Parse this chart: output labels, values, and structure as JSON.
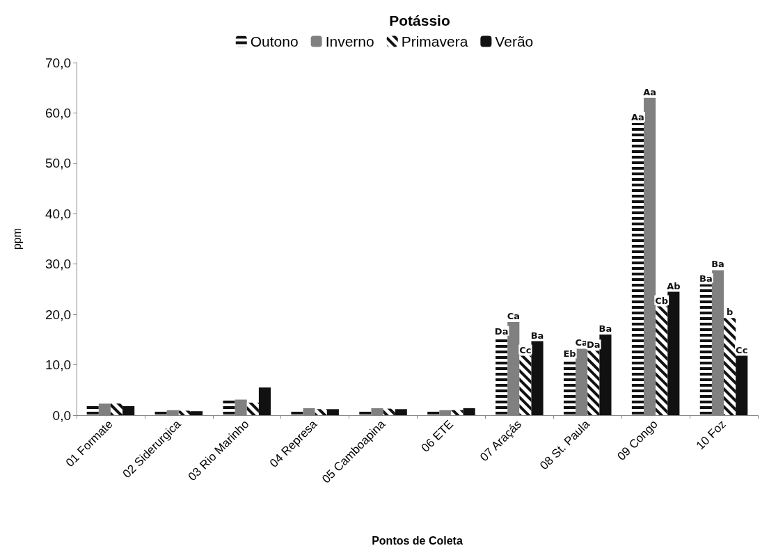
{
  "chart_data": {
    "type": "bar",
    "title": "Potássio",
    "xlabel": "Pontos de Coleta",
    "ylabel": "ppm",
    "categories": [
      "01 Formate",
      "02 Siderurgica",
      "03 Rio Marinho",
      "04 Represa",
      "05 Camboapina",
      "06 ETE",
      "07 Araçás",
      "08 St. Paula",
      "09 Congo",
      "10 Foz"
    ],
    "series": [
      {
        "name": "Outono",
        "color": "#111111",
        "values": [
          1.8,
          0.8,
          2.9,
          0.8,
          0.8,
          0.8,
          15.5,
          11.0,
          58.0,
          26.0
        ],
        "value_labels": [
          null,
          null,
          null,
          null,
          null,
          null,
          "Da",
          "Eb",
          "Aa",
          "Ba"
        ]
      },
      {
        "name": "Inverno",
        "color": "#808080",
        "values": [
          2.3,
          1.0,
          3.1,
          1.4,
          1.4,
          1.0,
          18.5,
          13.2,
          63.0,
          28.8
        ],
        "value_labels": [
          null,
          null,
          null,
          null,
          null,
          null,
          "Ca",
          "Ca",
          "Aa",
          "Ba"
        ]
      },
      {
        "name": "Primavera",
        "color": "#111111",
        "values": [
          2.3,
          0.9,
          2.5,
          1.2,
          1.3,
          1.0,
          11.8,
          12.8,
          21.6,
          19.3
        ],
        "value_labels": [
          null,
          null,
          null,
          null,
          null,
          null,
          "Cc",
          "Da",
          "Cb",
          "b"
        ]
      },
      {
        "name": "Verão",
        "color": "#111111",
        "values": [
          1.8,
          0.8,
          5.5,
          1.2,
          1.2,
          1.4,
          14.7,
          16.0,
          24.5,
          11.8
        ],
        "value_labels": [
          null,
          null,
          null,
          null,
          null,
          null,
          "Ba",
          "Ba",
          "Ab",
          "Cc"
        ]
      }
    ],
    "ylim": [
      0,
      70
    ],
    "yticks": [
      {
        "value": 0,
        "label": "0,0"
      },
      {
        "value": 10,
        "label": "10,0"
      },
      {
        "value": 20,
        "label": "20,0"
      },
      {
        "value": 30,
        "label": "30,0"
      },
      {
        "value": 40,
        "label": "40,0"
      },
      {
        "value": 50,
        "label": "50,0"
      },
      {
        "value": 60,
        "label": "60,0"
      },
      {
        "value": 70,
        "label": "70,0"
      }
    ],
    "grid": false,
    "legend": "top"
  }
}
